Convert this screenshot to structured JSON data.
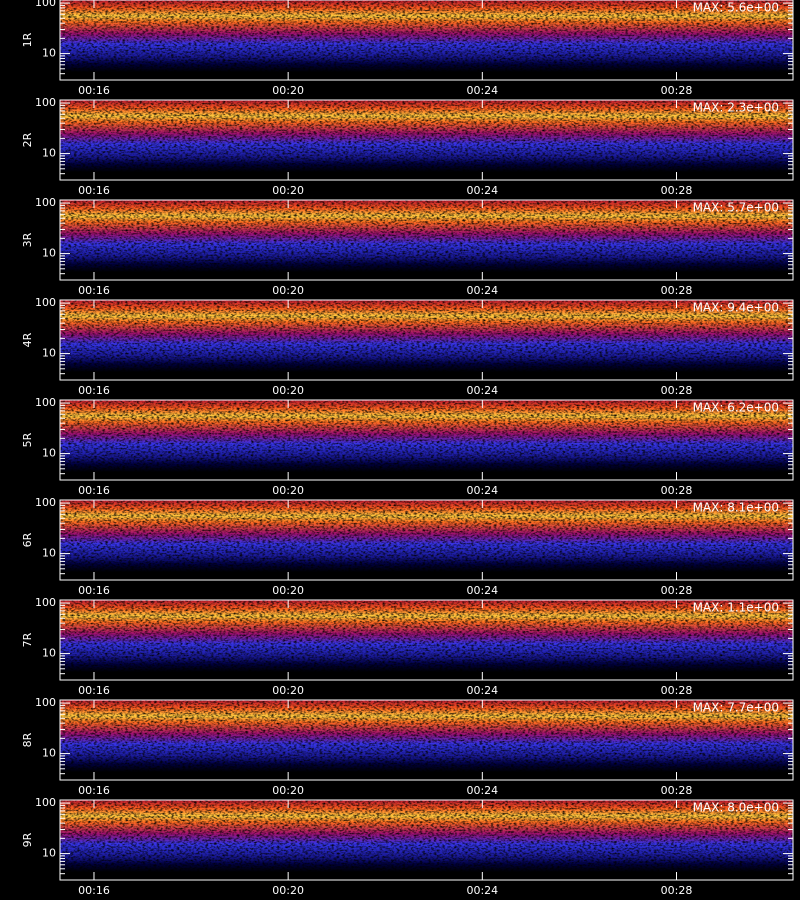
{
  "chart_data": [
    {
      "type": "heatmap",
      "ylabel": "1R",
      "annotation": "MAX: 5.6e+00",
      "log_y": true,
      "xlim": [
        15.3,
        30.4
      ],
      "xticks": [
        {
          "value": 16,
          "label": "00:16"
        },
        {
          "value": 20,
          "label": "00:20"
        },
        {
          "value": 24,
          "label": "00:24"
        },
        {
          "value": 28,
          "label": "00:28"
        }
      ],
      "ylim": [
        3,
        115
      ],
      "yticks": [
        10,
        100
      ],
      "yminor": [
        4,
        5,
        6,
        7,
        8,
        9,
        20,
        30,
        40,
        50,
        60,
        70,
        80,
        90
      ]
    },
    {
      "type": "heatmap",
      "ylabel": "2R",
      "annotation": "MAX: 2.3e+00",
      "log_y": true,
      "xlim": [
        15.3,
        30.4
      ],
      "xticks": [
        {
          "value": 16,
          "label": "00:16"
        },
        {
          "value": 20,
          "label": "00:20"
        },
        {
          "value": 24,
          "label": "00:24"
        },
        {
          "value": 28,
          "label": "00:28"
        }
      ],
      "ylim": [
        3,
        115
      ],
      "yticks": [
        10,
        100
      ],
      "yminor": [
        4,
        5,
        6,
        7,
        8,
        9,
        20,
        30,
        40,
        50,
        60,
        70,
        80,
        90
      ]
    },
    {
      "type": "heatmap",
      "ylabel": "3R",
      "annotation": "MAX: 5.7e+00",
      "log_y": true,
      "xlim": [
        15.3,
        30.4
      ],
      "xticks": [
        {
          "value": 16,
          "label": "00:16"
        },
        {
          "value": 20,
          "label": "00:20"
        },
        {
          "value": 24,
          "label": "00:24"
        },
        {
          "value": 28,
          "label": "00:28"
        }
      ],
      "ylim": [
        3,
        115
      ],
      "yticks": [
        10,
        100
      ],
      "yminor": [
        4,
        5,
        6,
        7,
        8,
        9,
        20,
        30,
        40,
        50,
        60,
        70,
        80,
        90
      ]
    },
    {
      "type": "heatmap",
      "ylabel": "4R",
      "annotation": "MAX: 9.4e+00",
      "log_y": true,
      "xlim": [
        15.3,
        30.4
      ],
      "xticks": [
        {
          "value": 16,
          "label": "00:16"
        },
        {
          "value": 20,
          "label": "00:20"
        },
        {
          "value": 24,
          "label": "00:24"
        },
        {
          "value": 28,
          "label": "00:28"
        }
      ],
      "ylim": [
        3,
        115
      ],
      "yticks": [
        10,
        100
      ],
      "yminor": [
        4,
        5,
        6,
        7,
        8,
        9,
        20,
        30,
        40,
        50,
        60,
        70,
        80,
        90
      ]
    },
    {
      "type": "heatmap",
      "ylabel": "5R",
      "annotation": "MAX: 6.2e+00",
      "log_y": true,
      "xlim": [
        15.3,
        30.4
      ],
      "xticks": [
        {
          "value": 16,
          "label": "00:16"
        },
        {
          "value": 20,
          "label": "00:20"
        },
        {
          "value": 24,
          "label": "00:24"
        },
        {
          "value": 28,
          "label": "00:28"
        }
      ],
      "ylim": [
        3,
        115
      ],
      "yticks": [
        10,
        100
      ],
      "yminor": [
        4,
        5,
        6,
        7,
        8,
        9,
        20,
        30,
        40,
        50,
        60,
        70,
        80,
        90
      ]
    },
    {
      "type": "heatmap",
      "ylabel": "6R",
      "annotation": "MAX: 8.1e+00",
      "log_y": true,
      "xlim": [
        15.3,
        30.4
      ],
      "xticks": [
        {
          "value": 16,
          "label": "00:16"
        },
        {
          "value": 20,
          "label": "00:20"
        },
        {
          "value": 24,
          "label": "00:24"
        },
        {
          "value": 28,
          "label": "00:28"
        }
      ],
      "ylim": [
        3,
        115
      ],
      "yticks": [
        10,
        100
      ],
      "yminor": [
        4,
        5,
        6,
        7,
        8,
        9,
        20,
        30,
        40,
        50,
        60,
        70,
        80,
        90
      ]
    },
    {
      "type": "heatmap",
      "ylabel": "7R",
      "annotation": "MAX: 1.1e+00",
      "log_y": true,
      "xlim": [
        15.3,
        30.4
      ],
      "xticks": [
        {
          "value": 16,
          "label": "00:16"
        },
        {
          "value": 20,
          "label": "00:20"
        },
        {
          "value": 24,
          "label": "00:24"
        },
        {
          "value": 28,
          "label": "00:28"
        }
      ],
      "ylim": [
        3,
        115
      ],
      "yticks": [
        10,
        100
      ],
      "yminor": [
        4,
        5,
        6,
        7,
        8,
        9,
        20,
        30,
        40,
        50,
        60,
        70,
        80,
        90
      ]
    },
    {
      "type": "heatmap",
      "ylabel": "8R",
      "annotation": "MAX: 7.7e+00",
      "log_y": true,
      "xlim": [
        15.3,
        30.4
      ],
      "xticks": [
        {
          "value": 16,
          "label": "00:16"
        },
        {
          "value": 20,
          "label": "00:20"
        },
        {
          "value": 24,
          "label": "00:24"
        },
        {
          "value": 28,
          "label": "00:28"
        }
      ],
      "ylim": [
        3,
        115
      ],
      "yticks": [
        10,
        100
      ],
      "yminor": [
        4,
        5,
        6,
        7,
        8,
        9,
        20,
        30,
        40,
        50,
        60,
        70,
        80,
        90
      ]
    },
    {
      "type": "heatmap",
      "ylabel": "9R",
      "annotation": "MAX: 8.0e+00",
      "log_y": true,
      "xlim": [
        15.3,
        30.4
      ],
      "xticks": [
        {
          "value": 16,
          "label": "00:16"
        },
        {
          "value": 20,
          "label": "00:20"
        },
        {
          "value": 24,
          "label": "00:24"
        },
        {
          "value": 28,
          "label": "00:28"
        }
      ],
      "ylim": [
        3,
        115
      ],
      "yticks": [
        10,
        100
      ],
      "yminor": [
        4,
        5,
        6,
        7,
        8,
        9,
        20,
        30,
        40,
        50,
        60,
        70,
        80,
        90
      ]
    }
  ]
}
